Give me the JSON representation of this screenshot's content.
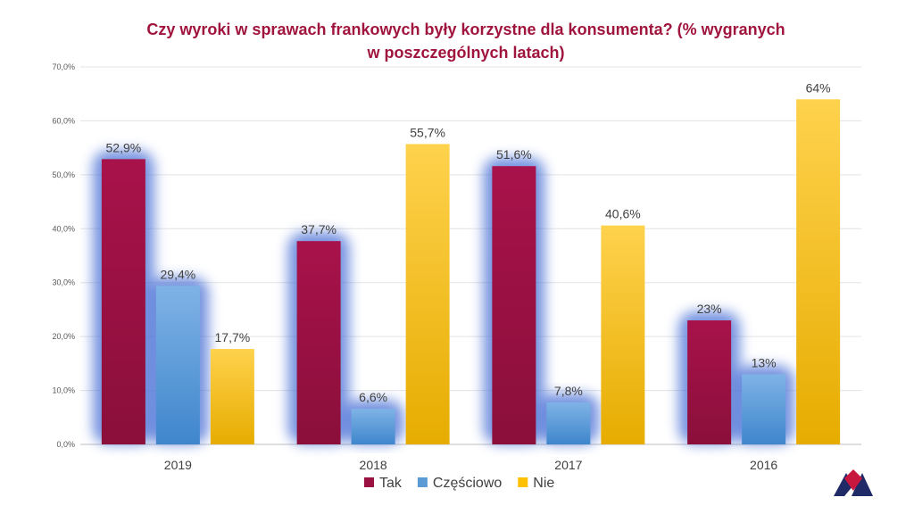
{
  "chart_data": {
    "type": "bar",
    "title_lines": [
      "Czy wyroki w sprawach frankowych były korzystne dla konsumenta? (% wygranych",
      "w poszczególnych latach)"
    ],
    "categories": [
      "2019",
      "2018",
      "2017",
      "2016"
    ],
    "series": [
      {
        "name": "Tak",
        "values": [
          52.9,
          37.7,
          51.6,
          23.0
        ],
        "labels": [
          "52,9%",
          "37,7%",
          "51,6%",
          "23%"
        ],
        "color": "#9b1142"
      },
      {
        "name": "Częściowo",
        "values": [
          29.4,
          6.6,
          7.8,
          13.0
        ],
        "labels": [
          "29,4%",
          "6,6%",
          "7,8%",
          "13%"
        ],
        "color": "#5b9bd5"
      },
      {
        "name": "Nie",
        "values": [
          17.7,
          55.7,
          40.6,
          64.0
        ],
        "labels": [
          "17,7%",
          "55,7%",
          "40,6%",
          "64%"
        ],
        "color": "#ffc000"
      }
    ],
    "ylim": [
      0,
      70
    ],
    "yticks": [
      "0,0%",
      "10,0%",
      "20,0%",
      "30,0%",
      "40,0%",
      "50,0%",
      "60,0%",
      "70,0%"
    ],
    "grid": true,
    "legend_position": "bottom",
    "xlabel": "",
    "ylabel": ""
  },
  "colors": {
    "title": "#a0153e",
    "glow": "#4a6fd6"
  }
}
